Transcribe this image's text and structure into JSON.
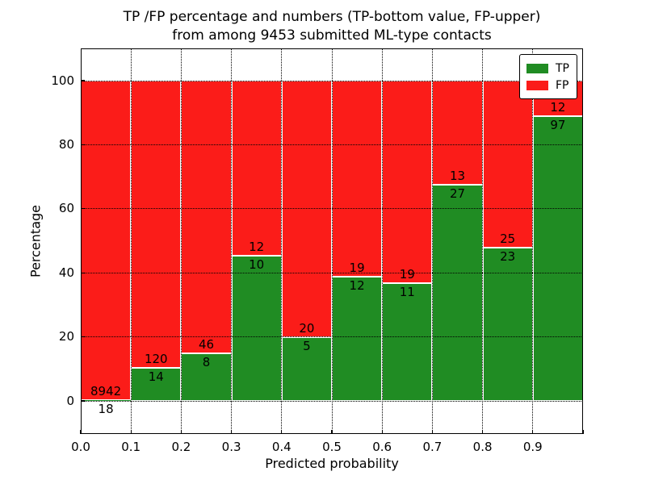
{
  "title": {
    "line1": "TP /FP percentage and numbers (TP-bottom value, FP-upper)",
    "line2": "from among 9453 submitted ML-type contacts"
  },
  "legend": [
    {
      "label": "TP",
      "color": "#208c23"
    },
    {
      "label": "FP",
      "color": "#fb1c19"
    }
  ],
  "chart_data": {
    "type": "bar",
    "stacked": true,
    "normalized_to": "percent",
    "title": "TP /FP percentage and numbers (TP-bottom value, FP-upper) from among 9453 submitted ML-type contacts",
    "xlabel": "Predicted probability",
    "ylabel": "Percentage",
    "total_contacts": 9453,
    "bins": [
      "0.0-0.1",
      "0.1-0.2",
      "0.2-0.3",
      "0.3-0.4",
      "0.4-0.5",
      "0.5-0.6",
      "0.6-0.7",
      "0.7-0.8",
      "0.8-0.9",
      "0.9-1.0"
    ],
    "series": [
      {
        "name": "TP",
        "color": "#208c23",
        "counts": [
          18,
          14,
          8,
          10,
          5,
          12,
          11,
          27,
          23,
          97
        ]
      },
      {
        "name": "FP",
        "color": "#fb1c19",
        "counts": [
          8942,
          120,
          46,
          12,
          20,
          19,
          19,
          13,
          25,
          12
        ]
      }
    ],
    "tp_percent": [
      0.2,
      10.4,
      14.8,
      45.5,
      20.0,
      38.7,
      36.7,
      67.5,
      47.9,
      89.0
    ],
    "xticks": [
      "0.0",
      "0.1",
      "0.2",
      "0.3",
      "0.4",
      "0.5",
      "0.6",
      "0.7",
      "0.8",
      "0.9"
    ],
    "yticks": [
      0,
      20,
      40,
      60,
      80,
      100
    ],
    "xlim": [
      0.0,
      1.0
    ],
    "ylim": [
      -10.5,
      110.3
    ],
    "grid": true,
    "grid_style": "dotted",
    "bar_edge_color": "#ffffff",
    "legend_position": "upper right"
  }
}
